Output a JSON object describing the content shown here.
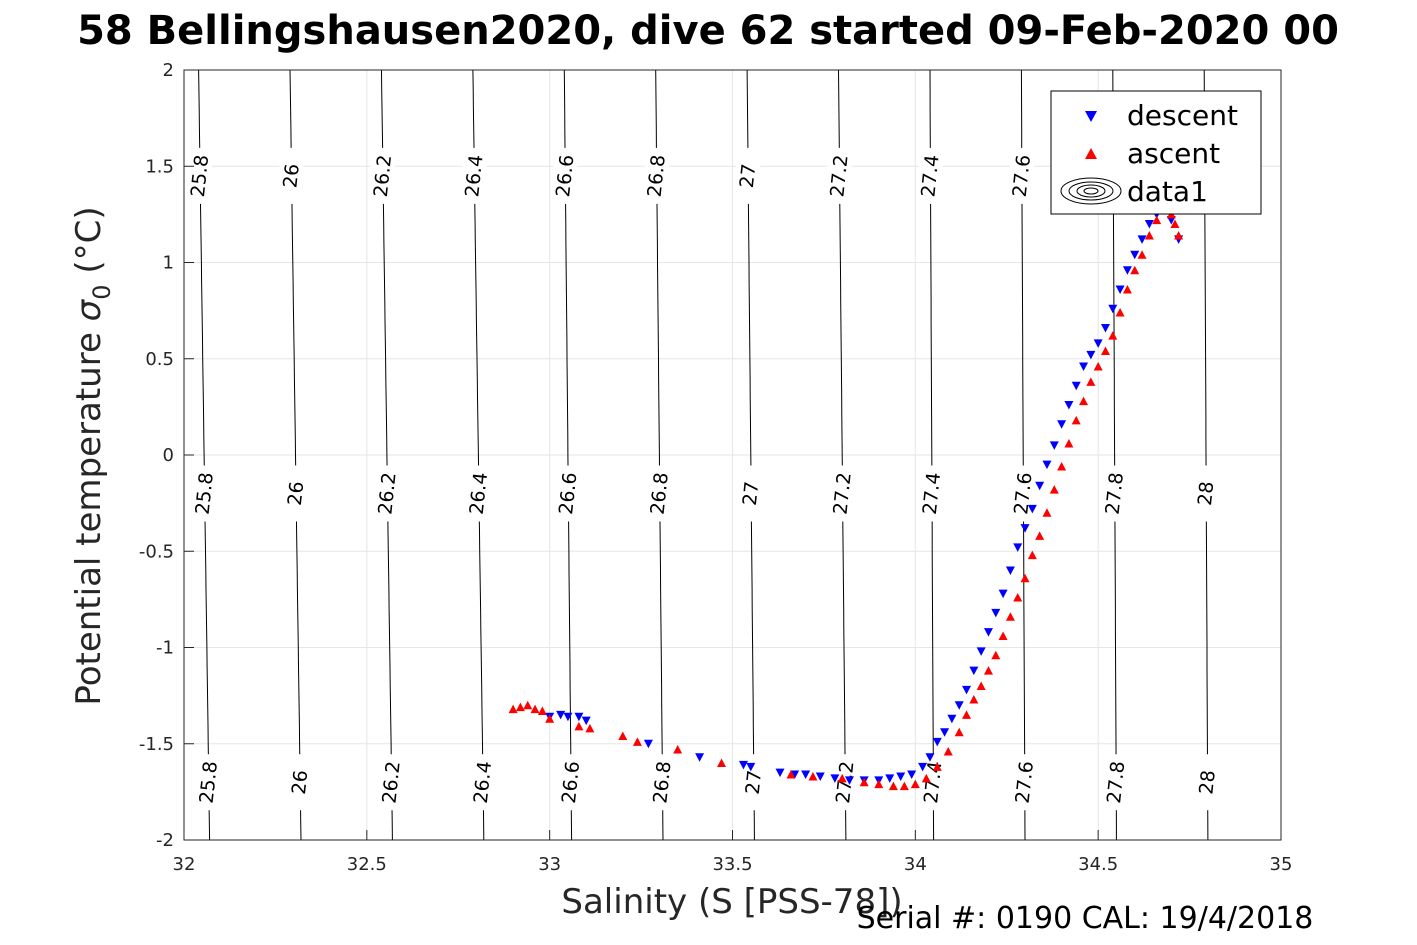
{
  "chart_data": {
    "type": "scatter",
    "title": "58 Bellingshausen2020, dive 62 started 09-Feb-2020 00",
    "xlabel": "Salinity (S [PSS-78])",
    "ylabel_text": "Potential temperature ",
    "ylabel_sigma": "σ",
    "ylabel_sub": "0",
    "ylabel_unit": " (°C)",
    "footer": "Serial #: 0190  CAL: 19/4/2018",
    "xlim": [
      32,
      35
    ],
    "ylim": [
      -2,
      2
    ],
    "xticks": [
      32,
      32.5,
      33,
      33.5,
      34,
      34.5,
      35
    ],
    "xtick_labels": [
      "32",
      "32.5",
      "33",
      "33.5",
      "34",
      "34.5",
      "35"
    ],
    "yticks": [
      -2,
      -1.5,
      -1,
      -0.5,
      0,
      0.5,
      1,
      1.5,
      2
    ],
    "ytick_labels": [
      "-2",
      "-1.5",
      "-1",
      "-0.5",
      "0",
      "0.5",
      "1",
      "1.5",
      "2"
    ],
    "grid": true,
    "legend_position": "top-right",
    "legend": [
      "descent",
      "ascent",
      "data1"
    ],
    "colors": {
      "descent": "#0000ff",
      "ascent": "#ff0000",
      "contour": "#000000",
      "grid": "#e6e6e6"
    },
    "contours": [
      {
        "level": 25.8,
        "label": "25.8",
        "s_at_top": 32.04,
        "s_at_bottom": 32.07
      },
      {
        "level": 26.0,
        "label": "26",
        "s_at_top": 32.29,
        "s_at_bottom": 32.32
      },
      {
        "level": 26.2,
        "label": "26.2",
        "s_at_top": 32.54,
        "s_at_bottom": 32.57
      },
      {
        "level": 26.4,
        "label": "26.4",
        "s_at_top": 32.79,
        "s_at_bottom": 32.82
      },
      {
        "level": 26.6,
        "label": "26.6",
        "s_at_top": 33.04,
        "s_at_bottom": 33.06
      },
      {
        "level": 26.8,
        "label": "26.8",
        "s_at_top": 33.29,
        "s_at_bottom": 33.31
      },
      {
        "level": 27.0,
        "label": "27",
        "s_at_top": 33.54,
        "s_at_bottom": 33.56
      },
      {
        "level": 27.2,
        "label": "27.2",
        "s_at_top": 33.79,
        "s_at_bottom": 33.81
      },
      {
        "level": 27.4,
        "label": "27.4",
        "s_at_top": 34.04,
        "s_at_bottom": 34.05
      },
      {
        "level": 27.6,
        "label": "27.6",
        "s_at_top": 34.29,
        "s_at_bottom": 34.3
      },
      {
        "level": 27.8,
        "label": "27.8",
        "s_at_top": 34.54,
        "s_at_bottom": 34.55
      },
      {
        "level": 28.0,
        "label": "28",
        "s_at_top": 34.79,
        "s_at_bottom": 34.8
      }
    ],
    "series": [
      {
        "name": "descent",
        "marker": "triangle-down",
        "points": [
          [
            33.1,
            -1.38
          ],
          [
            33.08,
            -1.36
          ],
          [
            33.05,
            -1.36
          ],
          [
            33.03,
            -1.35
          ],
          [
            33.0,
            -1.36
          ],
          [
            33.27,
            -1.5
          ],
          [
            33.41,
            -1.57
          ],
          [
            33.53,
            -1.61
          ],
          [
            33.55,
            -1.62
          ],
          [
            33.63,
            -1.65
          ],
          [
            33.67,
            -1.66
          ],
          [
            33.7,
            -1.66
          ],
          [
            33.74,
            -1.67
          ],
          [
            33.78,
            -1.68
          ],
          [
            33.82,
            -1.69
          ],
          [
            33.86,
            -1.69
          ],
          [
            33.9,
            -1.69
          ],
          [
            33.93,
            -1.68
          ],
          [
            33.96,
            -1.67
          ],
          [
            33.99,
            -1.66
          ],
          [
            34.02,
            -1.62
          ],
          [
            34.04,
            -1.57
          ],
          [
            34.06,
            -1.49
          ],
          [
            34.08,
            -1.44
          ],
          [
            34.1,
            -1.37
          ],
          [
            34.12,
            -1.3
          ],
          [
            34.14,
            -1.22
          ],
          [
            34.16,
            -1.12
          ],
          [
            34.18,
            -1.02
          ],
          [
            34.2,
            -0.92
          ],
          [
            34.22,
            -0.82
          ],
          [
            34.24,
            -0.72
          ],
          [
            34.26,
            -0.6
          ],
          [
            34.28,
            -0.48
          ],
          [
            34.3,
            -0.38
          ],
          [
            34.32,
            -0.28
          ],
          [
            34.34,
            -0.16
          ],
          [
            34.36,
            -0.05
          ],
          [
            34.38,
            0.05
          ],
          [
            34.4,
            0.16
          ],
          [
            34.42,
            0.26
          ],
          [
            34.44,
            0.36
          ],
          [
            34.46,
            0.46
          ],
          [
            34.48,
            0.52
          ],
          [
            34.5,
            0.58
          ],
          [
            34.52,
            0.66
          ],
          [
            34.54,
            0.76
          ],
          [
            34.56,
            0.86
          ],
          [
            34.58,
            0.96
          ],
          [
            34.6,
            1.04
          ],
          [
            34.62,
            1.12
          ],
          [
            34.64,
            1.2
          ],
          [
            34.66,
            1.25
          ],
          [
            34.68,
            1.27
          ],
          [
            34.7,
            1.22
          ],
          [
            34.72,
            1.12
          ]
        ]
      },
      {
        "name": "ascent",
        "marker": "triangle-up",
        "points": [
          [
            32.9,
            -1.32
          ],
          [
            32.92,
            -1.31
          ],
          [
            32.94,
            -1.3
          ],
          [
            32.96,
            -1.32
          ],
          [
            32.98,
            -1.33
          ],
          [
            33.0,
            -1.37
          ],
          [
            33.08,
            -1.41
          ],
          [
            33.11,
            -1.42
          ],
          [
            33.2,
            -1.46
          ],
          [
            33.24,
            -1.49
          ],
          [
            33.35,
            -1.53
          ],
          [
            33.47,
            -1.6
          ],
          [
            33.66,
            -1.66
          ],
          [
            33.72,
            -1.67
          ],
          [
            33.8,
            -1.68
          ],
          [
            33.86,
            -1.7
          ],
          [
            33.9,
            -1.71
          ],
          [
            33.94,
            -1.72
          ],
          [
            33.97,
            -1.72
          ],
          [
            34.0,
            -1.71
          ],
          [
            34.03,
            -1.68
          ],
          [
            34.06,
            -1.62
          ],
          [
            34.09,
            -1.54
          ],
          [
            34.12,
            -1.44
          ],
          [
            34.14,
            -1.35
          ],
          [
            34.16,
            -1.27
          ],
          [
            34.18,
            -1.2
          ],
          [
            34.2,
            -1.12
          ],
          [
            34.22,
            -1.04
          ],
          [
            34.24,
            -0.94
          ],
          [
            34.26,
            -0.84
          ],
          [
            34.28,
            -0.74
          ],
          [
            34.3,
            -0.64
          ],
          [
            34.32,
            -0.52
          ],
          [
            34.34,
            -0.42
          ],
          [
            34.36,
            -0.3
          ],
          [
            34.38,
            -0.18
          ],
          [
            34.4,
            -0.06
          ],
          [
            34.42,
            0.06
          ],
          [
            34.44,
            0.18
          ],
          [
            34.46,
            0.28
          ],
          [
            34.48,
            0.38
          ],
          [
            34.5,
            0.46
          ],
          [
            34.52,
            0.54
          ],
          [
            34.54,
            0.62
          ],
          [
            34.56,
            0.74
          ],
          [
            34.58,
            0.86
          ],
          [
            34.6,
            0.96
          ],
          [
            34.62,
            1.04
          ],
          [
            34.64,
            1.14
          ],
          [
            34.66,
            1.22
          ],
          [
            34.68,
            1.27
          ],
          [
            34.7,
            1.25
          ],
          [
            34.71,
            1.2
          ],
          [
            34.72,
            1.14
          ]
        ]
      }
    ]
  }
}
